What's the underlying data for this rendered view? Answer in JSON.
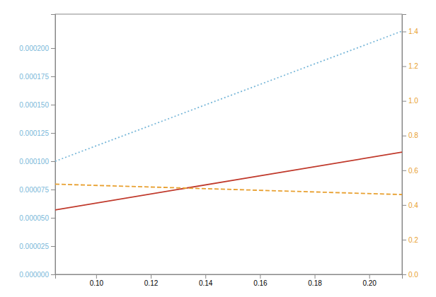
{
  "chart_data": {
    "type": "line",
    "x": [
      0.085,
      0.212
    ],
    "series": [
      {
        "color": "#7ab8d9",
        "line_style": "dotted",
        "values": [
          0.0001,
          0.000215
        ]
      },
      {
        "color": "#c0392b",
        "line_style": "solid",
        "values": [
          5.7e-05,
          0.000108
        ]
      },
      {
        "color": "#e8a030",
        "line_style": "dashed",
        "axis": "y2",
        "values": [
          0.52,
          0.46
        ]
      }
    ],
    "xlim": [
      0.085,
      0.212
    ],
    "xticks": [
      {
        "value": 0.1,
        "label": "0.10"
      },
      0.12,
      0.14,
      0.16,
      0.18,
      {
        "value": 0.2,
        "label": "0.20"
      }
    ],
    "ylim": [
      0.0,
      0.00023
    ],
    "yticks": [
      {
        "value": 0.0,
        "label": "0.000000"
      },
      {
        "value": 2.5e-05,
        "label": "0.000025"
      },
      {
        "value": 5e-05,
        "label": "0.000050"
      },
      {
        "value": 7.5e-05,
        "label": "0.000075"
      },
      {
        "value": 0.0001,
        "label": "0.000100"
      },
      {
        "value": 0.000125,
        "label": "0.000125"
      },
      {
        "value": 0.00015,
        "label": "0.000150"
      },
      {
        "value": 0.000175,
        "label": "0.000175"
      },
      {
        "value": 0.0002,
        "label": "0.000200"
      }
    ],
    "y2lim": [
      0.0,
      1.5
    ],
    "y2ticks": [
      {
        "value": 0.0,
        "label": "0.0"
      },
      0.2,
      0.4,
      0.6,
      0.8,
      {
        "value": 1.0,
        "label": "1.0"
      },
      1.2,
      1.4
    ],
    "grid": false
  }
}
